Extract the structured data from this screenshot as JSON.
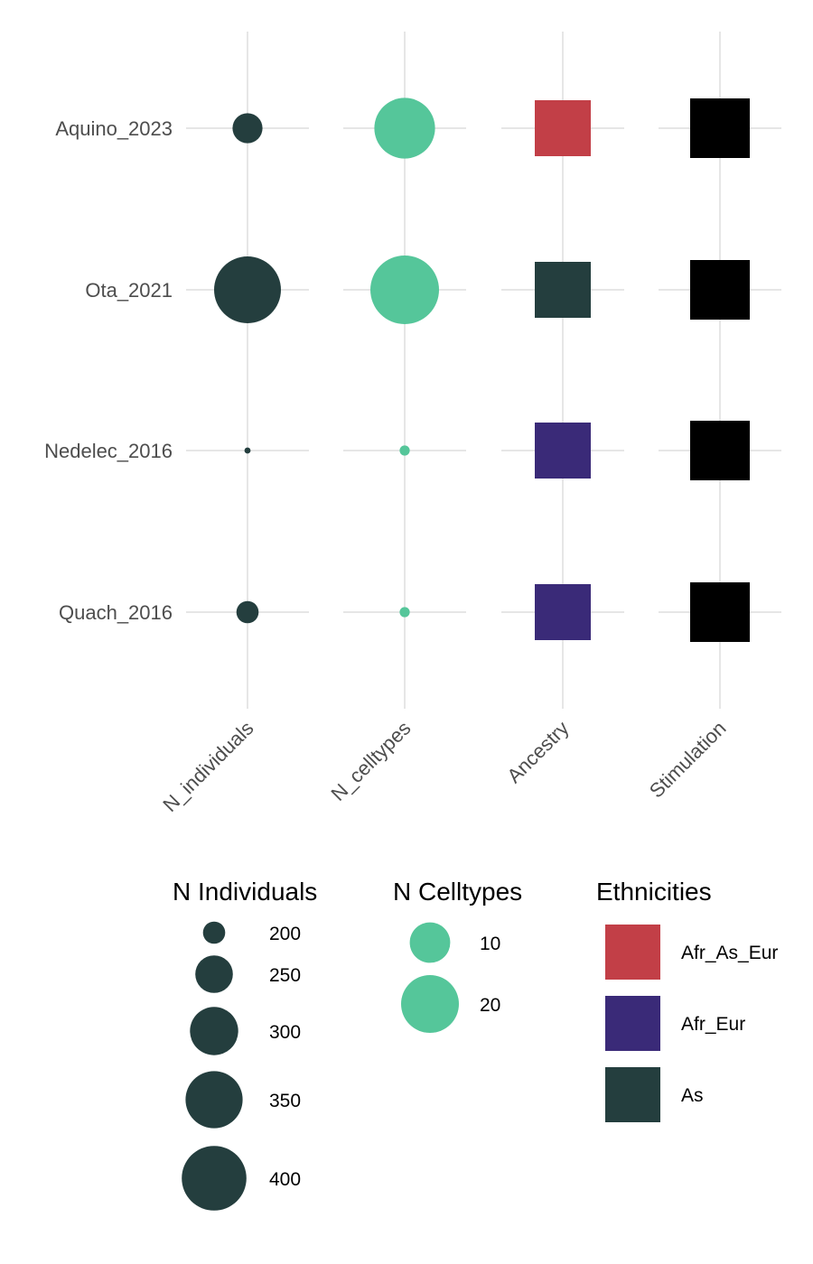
{
  "chart_data": {
    "type": "scatter",
    "rows": [
      "Aquino_2023",
      "Ota_2021",
      "Nedelec_2016",
      "Quach_2016"
    ],
    "columns": [
      "N_individuals",
      "N_celltypes",
      "Ancestry",
      "Stimulation"
    ],
    "records": [
      {
        "study": "Aquino_2023",
        "N_individuals": 222,
        "N_celltypes": 22,
        "Ancestry": "Afr_As_Eur",
        "Stimulation": true
      },
      {
        "study": "Ota_2021",
        "N_individuals": 416,
        "N_celltypes": 28,
        "Ancestry": "As",
        "Stimulation": true
      },
      {
        "study": "Nedelec_2016",
        "N_individuals": 175,
        "N_celltypes": 1,
        "Ancestry": "Afr_Eur",
        "Stimulation": true
      },
      {
        "study": "Quach_2016",
        "N_individuals": 200,
        "N_celltypes": 1,
        "Ancestry": "Afr_Eur",
        "Stimulation": true
      }
    ],
    "colors": {
      "individuals": "#243e3e",
      "celltypes": "#55c69a",
      "stimulation": "#000000",
      "Afr_As_Eur": "#c23f47",
      "Afr_Eur": "#3a2a78",
      "As": "#243e3e",
      "grid": "#e6e6e6"
    },
    "legends": {
      "individuals": {
        "title": "N Individuals",
        "values": [
          200,
          250,
          300,
          350,
          400
        ],
        "labels": [
          "200",
          "250",
          "300",
          "350",
          "400"
        ]
      },
      "celltypes": {
        "title": "N Celltypes",
        "values": [
          10,
          20
        ],
        "labels": [
          "10",
          "20"
        ]
      },
      "ethnicities": {
        "title": "Ethnicities",
        "labels": [
          "Afr_As_Eur",
          "Afr_Eur",
          "As"
        ]
      }
    },
    "grid": true,
    "legend_position": "bottom"
  }
}
